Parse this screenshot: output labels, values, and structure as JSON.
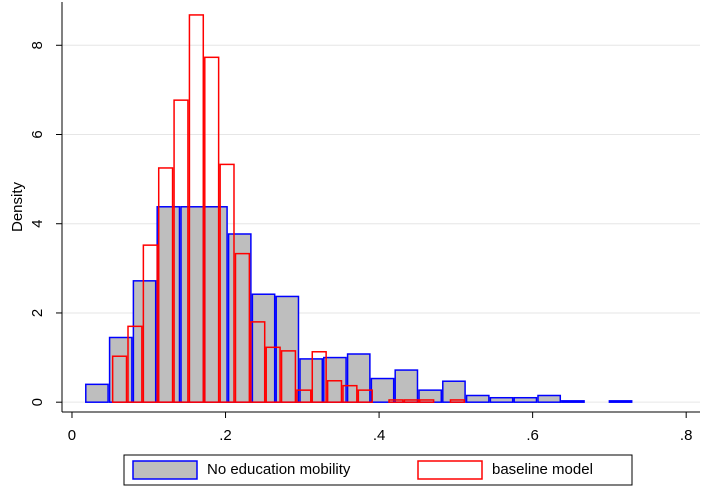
{
  "chart_data": {
    "type": "histogram",
    "y_label": "Density",
    "series": [
      {
        "name": "No education mobility",
        "color": "#0000ff",
        "fill": "#bebebe",
        "bins": [
          0.017,
          0.048,
          0.079,
          0.11,
          0.141,
          0.172,
          0.203,
          0.234,
          0.265,
          0.296,
          0.327,
          0.358,
          0.389,
          0.42,
          0.451,
          0.482,
          0.513,
          0.544,
          0.575,
          0.606,
          0.637,
          0.668,
          0.699,
          0.73
        ],
        "values": [
          0.4,
          1.45,
          2.72,
          4.38,
          4.38,
          4.38,
          3.77,
          2.42,
          2.37,
          0.97,
          1.0,
          1.08,
          0.53,
          0.72,
          0.27,
          0.47,
          0.15,
          0.1,
          0.1,
          0.15,
          0.03,
          0,
          0.03
        ]
      },
      {
        "name": "baseline model",
        "color": "#ff0000",
        "fill": "none",
        "bins": [
          0.052,
          0.072,
          0.092,
          0.112,
          0.132,
          0.152,
          0.172,
          0.192,
          0.212,
          0.232,
          0.252,
          0.272,
          0.292,
          0.312,
          0.332,
          0.352,
          0.372,
          0.392,
          0.412,
          0.432,
          0.452,
          0.472,
          0.492,
          0.512
        ],
        "values": [
          1.03,
          1.7,
          3.52,
          5.25,
          6.77,
          8.68,
          7.73,
          5.33,
          3.33,
          1.8,
          1.23,
          1.15,
          0.27,
          1.13,
          0.48,
          0.37,
          0.27,
          0,
          0.05,
          0.05,
          0.05,
          0,
          0.05
        ]
      }
    ],
    "xlim": [
      -0.013,
      0.818
    ],
    "xticks": [
      0,
      {
        "value": 0.2,
        "label": ".2"
      },
      {
        "value": 0.4,
        "label": ".4"
      },
      {
        "value": 0.6,
        "label": ".6"
      },
      {
        "value": 0.8,
        "label": ".8"
      }
    ],
    "ylim": [
      -0.22,
      8.97
    ],
    "yticks": [
      0,
      2,
      4,
      6,
      8
    ],
    "grid": true,
    "legend": "bottom"
  }
}
